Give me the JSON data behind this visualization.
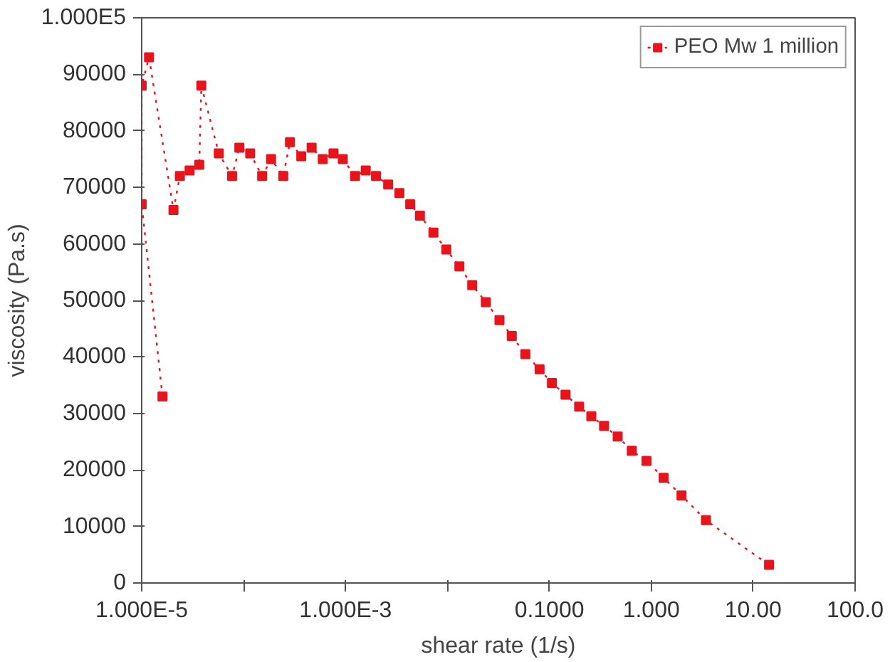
{
  "chart_data": {
    "type": "line",
    "xlabel": "shear rate (1/s)",
    "ylabel": "viscosity (Pa.s)",
    "log": "x",
    "grid": false,
    "legend": "top right",
    "marker": "square",
    "line_style": "dotted",
    "xlim": [
      1e-05,
      100
    ],
    "ylim": [
      0,
      100000
    ],
    "xticks": [
      {
        "value": 1e-05,
        "label": "1.000E-5"
      },
      {
        "value": 0.0001,
        "label": null
      },
      {
        "value": 0.001,
        "label": "1.000E-3"
      },
      {
        "value": 0.01,
        "label": null
      },
      {
        "value": 0.1,
        "label": "0.1000"
      },
      {
        "value": 1,
        "label": "1.000"
      },
      {
        "value": 10,
        "label": "10.00"
      },
      {
        "value": 100,
        "label": "100.0"
      }
    ],
    "yticks": [
      0,
      10000,
      20000,
      30000,
      40000,
      50000,
      60000,
      70000,
      80000,
      90000,
      {
        "value": 100000,
        "label": "1.000E5"
      }
    ],
    "series": [
      {
        "name": "PEO Mw 1 million",
        "color": "#e8141c",
        "x": [
          1.6e-05,
          1e-05,
          1e-05,
          1.18e-05,
          2.05e-05,
          2.37e-05,
          2.95e-05,
          3.67e-05,
          3.85e-05,
          5.71e-05,
          7.71e-05,
          9.08e-05,
          0.000116,
          0.000152,
          0.000186,
          0.000245,
          0.000285,
          0.000368,
          0.000465,
          0.000598,
          0.000762,
          0.00094,
          0.00124,
          0.00158,
          0.00199,
          0.00262,
          0.00338,
          0.00431,
          0.00537,
          0.00729,
          0.00975,
          0.0131,
          0.0175,
          0.0238,
          0.0324,
          0.0428,
          0.0581,
          0.0802,
          0.106,
          0.144,
          0.196,
          0.258,
          0.344,
          0.468,
          0.644,
          0.897,
          1.32,
          1.98,
          3.44,
          14.3
        ],
        "values": [
          33000,
          67000,
          88000,
          93000,
          66000,
          72000,
          73000,
          74000,
          88000,
          76000,
          72000,
          77000,
          76000,
          72000,
          75000,
          72000,
          78000,
          75500,
          77000,
          75000,
          76000,
          75000,
          72000,
          73000,
          72000,
          70500,
          69000,
          67000,
          65000,
          62000,
          59000,
          56000,
          52700,
          49700,
          46500,
          43700,
          40500,
          37800,
          35400,
          33300,
          31200,
          29500,
          27800,
          25900,
          23400,
          21600,
          18600,
          15500,
          11100,
          3200
        ]
      }
    ]
  }
}
